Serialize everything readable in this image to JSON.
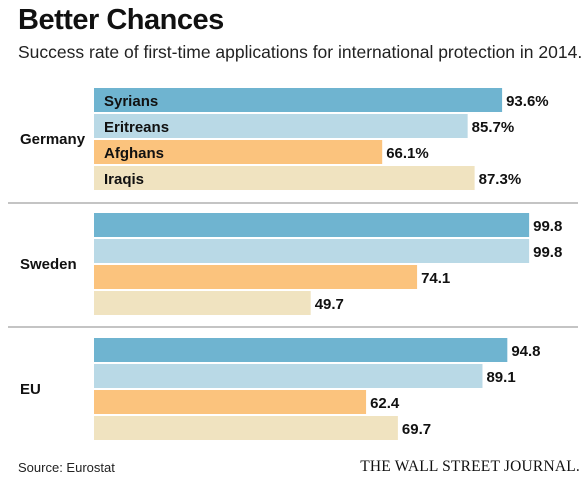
{
  "header": {
    "title": "Better Chances",
    "subtitle": "Success rate of first-time applications for international protection in 2014."
  },
  "footer": {
    "source": "Source: Eurostat",
    "brand": "THE WALL STREET JOURNAL."
  },
  "colors": {
    "Syrians": "#6fb4d0",
    "Eritreans": "#b9d9e6",
    "Afghans": "#fbc37d",
    "Iraqis": "#f0e3c0",
    "divider": "#8a8a8a"
  },
  "chart_data": {
    "type": "bar",
    "orientation": "horizontal",
    "xlim": [
      0,
      100
    ],
    "series_names": [
      "Syrians",
      "Eritreans",
      "Afghans",
      "Iraqis"
    ],
    "groups": [
      {
        "name": "Germany",
        "values": [
          93.6,
          85.7,
          66.1,
          87.3
        ],
        "labels": [
          "93.6%",
          "85.7%",
          "66.1%",
          "87.3%"
        ],
        "show_series_names": true
      },
      {
        "name": "Sweden",
        "values": [
          99.8,
          99.8,
          74.1,
          49.7
        ],
        "labels": [
          "99.8",
          "99.8",
          "74.1",
          "49.7"
        ],
        "show_series_names": false
      },
      {
        "name": "EU",
        "values": [
          94.8,
          89.1,
          62.4,
          69.7
        ],
        "labels": [
          "94.8",
          "89.1",
          "62.4",
          "69.7"
        ],
        "show_series_names": false
      }
    ]
  }
}
